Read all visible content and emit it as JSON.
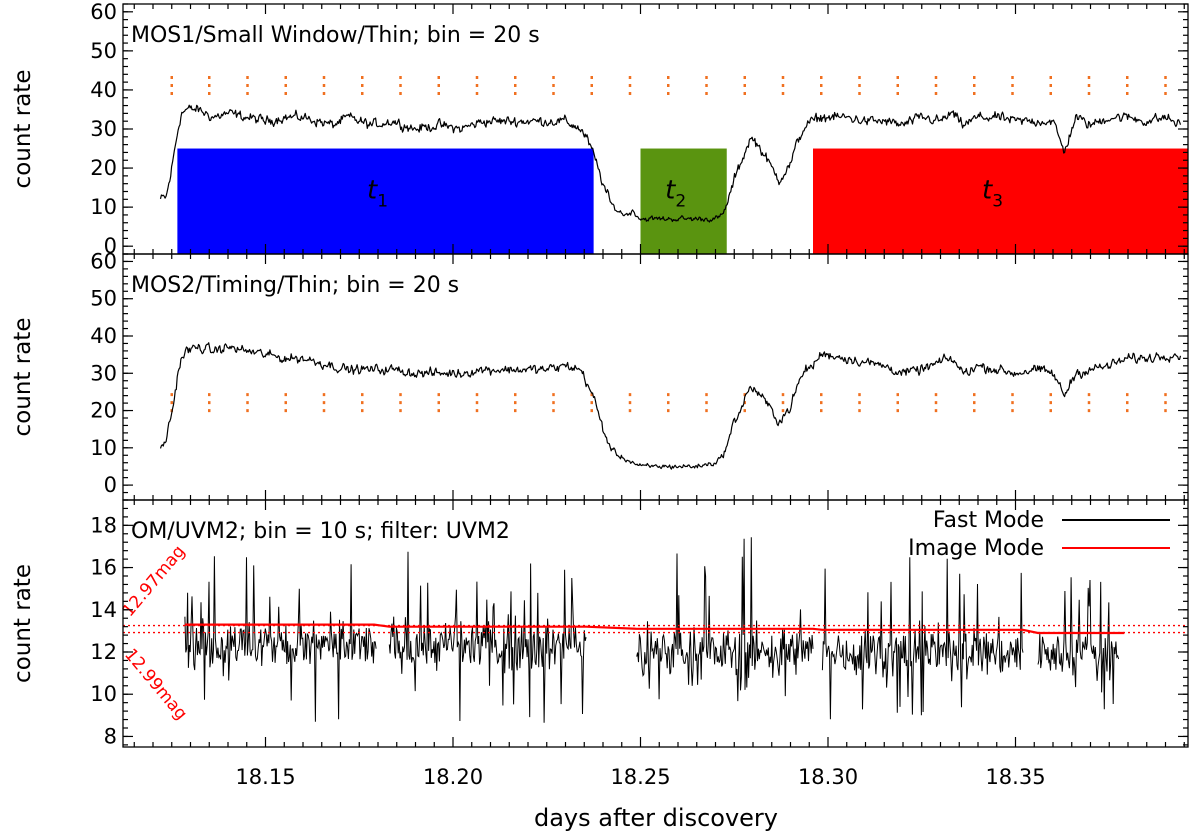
{
  "chart_data": {
    "type": "line",
    "xlabel": "days after discovery",
    "xlim": [
      18.112,
      18.396
    ],
    "xticks": [
      "18.15",
      "18.20",
      "18.25",
      "18.30",
      "18.35"
    ],
    "xtick_values": [
      18.15,
      18.2,
      18.25,
      18.3,
      18.35
    ],
    "panels": [
      {
        "title": "MOS1/Small Window/Thin; bin = 20 s",
        "ylabel": "count rate",
        "ylim": [
          -2,
          62
        ],
        "yticks": [
          "0",
          "10",
          "20",
          "30",
          "40",
          "50",
          "60"
        ],
        "ytick_values": [
          0,
          10,
          20,
          30,
          40,
          50,
          60
        ],
        "guide_level": 41,
        "intervals": [
          {
            "label": "t",
            "sub": "1",
            "x0": 18.1265,
            "x1": 18.2375,
            "y": 25,
            "color": "#0000ff"
          },
          {
            "label": "t",
            "sub": "2",
            "x0": 18.25,
            "x1": 18.273,
            "y": 25,
            "color": "#5a9410"
          },
          {
            "label": "t",
            "sub": "3",
            "x0": 18.296,
            "x1": 18.396,
            "y": 25,
            "color": "#ff0000"
          }
        ],
        "series": [
          {
            "name": "MOS1",
            "x": [
              18.122,
              18.1235,
              18.1245,
              18.1255,
              18.1265,
              18.1275,
              18.129,
              18.132,
              18.136,
              18.14,
              18.145,
              18.15,
              18.155,
              18.16,
              18.164,
              18.168,
              18.172,
              18.178,
              18.184,
              18.19,
              18.196,
              18.202,
              18.208,
              18.214,
              18.22,
              18.225,
              18.23,
              18.234,
              18.236,
              18.238,
              18.24,
              18.242,
              18.244,
              18.246,
              18.248,
              18.25,
              18.255,
              18.26,
              18.265,
              18.27,
              18.272,
              18.2735,
              18.275,
              18.277,
              18.279,
              18.28,
              18.282,
              18.285,
              18.287,
              18.29,
              18.292,
              18.294,
              18.296,
              18.298,
              18.3,
              18.305,
              18.31,
              18.315,
              18.32,
              18.325,
              18.33,
              18.333,
              18.336,
              18.34,
              18.345,
              18.35,
              18.355,
              18.36,
              18.363,
              18.366,
              18.37,
              18.375,
              18.38,
              18.385,
              18.39,
              18.394
            ],
            "y": [
              12,
              12.5,
              17,
              23,
              29,
              34,
              35,
              35,
              33,
              34,
              33,
              32,
              33,
              33,
              32,
              31,
              33,
              31,
              32,
              30,
              31,
              30,
              32,
              32,
              32,
              32,
              32,
              30,
              27,
              22,
              16,
              11,
              9,
              8,
              9,
              7,
              7,
              7,
              7,
              7,
              8,
              12,
              17,
              22,
              27,
              27.5,
              25,
              20,
              17,
              21,
              27,
              31,
              32,
              33,
              33,
              33,
              32,
              32,
              31,
              33,
              32,
              34,
              31,
              33,
              33,
              32,
              32,
              32,
              24,
              33,
              31,
              33,
              33,
              32,
              33,
              31
            ]
          }
        ]
      },
      {
        "title": "MOS2/Timing/Thin; bin = 20 s",
        "ylabel": "count rate",
        "ylim": [
          -4,
          62
        ],
        "yticks": [
          "0",
          "10",
          "20",
          "30",
          "40",
          "50",
          "60"
        ],
        "ytick_values": [
          0,
          10,
          20,
          30,
          40,
          50,
          60
        ],
        "guide_level": 22,
        "series": [
          {
            "name": "MOS2",
            "x": [
              18.122,
              18.1235,
              18.1245,
              18.1255,
              18.1265,
              18.1275,
              18.129,
              18.132,
              18.136,
              18.14,
              18.145,
              18.15,
              18.155,
              18.16,
              18.164,
              18.168,
              18.172,
              18.178,
              18.184,
              18.19,
              18.196,
              18.202,
              18.208,
              18.214,
              18.22,
              18.225,
              18.23,
              18.234,
              18.236,
              18.238,
              18.24,
              18.242,
              18.244,
              18.246,
              18.248,
              18.25,
              18.255,
              18.26,
              18.265,
              18.27,
              18.272,
              18.2735,
              18.275,
              18.277,
              18.279,
              18.28,
              18.282,
              18.285,
              18.287,
              18.29,
              18.292,
              18.294,
              18.296,
              18.298,
              18.3,
              18.305,
              18.31,
              18.315,
              18.32,
              18.325,
              18.33,
              18.333,
              18.336,
              18.34,
              18.345,
              18.35,
              18.355,
              18.36,
              18.363,
              18.366,
              18.37,
              18.375,
              18.38,
              18.385,
              18.39,
              18.394
            ],
            "y": [
              10,
              12,
              17,
              22,
              29,
              34,
              36,
              37,
              36,
              37,
              36,
              35,
              34,
              34,
              33,
              32,
              31,
              31,
              31,
              30,
              30,
              30,
              31,
              31,
              31,
              31,
              32,
              31,
              27,
              22,
              15,
              10,
              8,
              7,
              6,
              5,
              5,
              5,
              5,
              6,
              8,
              12,
              17,
              21,
              26,
              26,
              24,
              20,
              17,
              21,
              27,
              31,
              32,
              35,
              35,
              34,
              33,
              32,
              30,
              31,
              33,
              34,
              30,
              32,
              31,
              30,
              31,
              30,
              24,
              30,
              31,
              32,
              34,
              34,
              35,
              35
            ]
          }
        ]
      },
      {
        "title": "OM/UVM2; bin = 10 s; filter: UVM2",
        "ylabel": "count rate",
        "ylim": [
          7.5,
          19.2
        ],
        "yticks": [
          "8",
          "10",
          "12",
          "14",
          "16",
          "18"
        ],
        "ytick_values": [
          8,
          10,
          12,
          14,
          16,
          18
        ],
        "legend": [
          {
            "label": "Fast Mode",
            "color": "#000000"
          },
          {
            "label": "Image Mode",
            "color": "#ff0000"
          }
        ],
        "reference_lines": [
          {
            "value": 13.25,
            "label": "12.97mag",
            "color": "#ff0000"
          },
          {
            "value": 12.92,
            "label": "12.99mag",
            "color": "#ff0000"
          }
        ],
        "fast_mode_segments": [
          {
            "x0": 18.1285,
            "x1": 18.1795,
            "mean": 12.3,
            "min": 8.6,
            "max": 16.6
          },
          {
            "x0": 18.183,
            "x1": 18.2355,
            "mean": 12.3,
            "min": 8.5,
            "max": 16.9
          },
          {
            "x0": 18.249,
            "x1": 18.296,
            "mean": 12.0,
            "min": 9.6,
            "max": 17.8
          },
          {
            "x0": 18.2985,
            "x1": 18.352,
            "mean": 12.0,
            "min": 8.7,
            "max": 16.6
          },
          {
            "x0": 18.356,
            "x1": 18.3775,
            "mean": 11.9,
            "min": 9.2,
            "max": 15.9
          }
        ],
        "image_mode": {
          "x": [
            18.1285,
            18.179,
            18.183,
            18.2355,
            18.249,
            18.296,
            18.2985,
            18.352,
            18.356,
            18.379
          ],
          "y": [
            13.3,
            13.3,
            13.2,
            13.2,
            13.1,
            13.1,
            13.05,
            13.05,
            12.9,
            12.9
          ]
        }
      }
    ]
  }
}
